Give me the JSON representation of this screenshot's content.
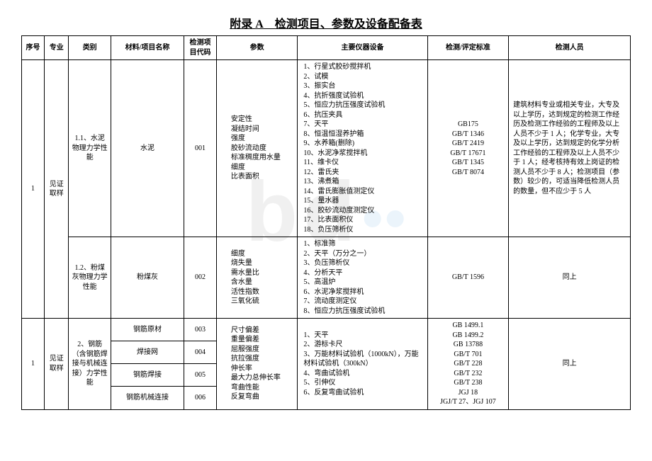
{
  "title": "附录 A 检测项目、参数及设备配备表",
  "watermark": "bd",
  "columns": {
    "seq": "序号",
    "major": "专业",
    "category": "类别",
    "material": "材料/项目名称",
    "code": "检测项目代码",
    "param": "参数",
    "equipment": "主要仪器设备",
    "standard": "检测/评定标准",
    "personnel": "检测人员"
  },
  "colwidths": [
    "28px",
    "30px",
    "52px",
    "90px",
    "40px",
    "100px",
    "160px",
    "100px",
    "150px"
  ],
  "r1": {
    "seq": "1",
    "major": "见证取样",
    "category": "1.1、水泥物理力学性能",
    "material": "水泥",
    "code": "001",
    "param": "安定性\n凝结时间\n强度\n胶砂流动度\n标准稠度用水量\n细度\n比表面积",
    "equipment": "1、行星式胶砂搅拌机\n2、试模\n3、振实台\n4、抗折强度试验机\n5、恒应力抗压强度试验机\n6、抗压夹具\n7、天平\n8、恒温恒湿养护箱\n9、水养箱(删除)\n10、水泥净浆搅拌机\n11、维卡仪\n12、雷氏夹\n13、沸煮箱\n14、雷氏膨胀值测定仪\n15、量水器\n16、胶砂流动度测定仪\n17、比表面积仪\n18、负压筛析仪",
    "standard": "GB175\nGB/T 1346\nGB/T 2419\nGB/T 17671\nGB/T 1345\nGB/T 8074",
    "personnel": "建筑材料专业或相关专业，大专及以上学历，达到规定的检测工作经历及检测工作经验的工程师及以上人员不少于 1 人；化学专业，大专及以上学历，达到规定的化学分析工作经验的工程师及以上人员不少于 1 人；经考核持有效上岗证的检测人员不少于 8 人；检测项目（参数）较少的，可适当降低检测人员的数量，但不应少于 5 人"
  },
  "r2": {
    "category": "1.2、粉煤灰物理力学性能",
    "material": "粉煤灰",
    "code": "002",
    "param": "细度\n烧失量\n需水量比\n含水量\n活性指数\n三氧化硫",
    "equipment": "1、标准筛\n2、天平（万分之一）\n3、负压筛析仪\n4、分析天平\n5、高温炉\n6、水泥净浆搅拌机\n7、流动度测定仪\n8、恒应力抗压强度试验机",
    "standard": "GB/T 1596",
    "personnel": "同上"
  },
  "r3": {
    "seq": "1",
    "major": "见证取样",
    "category": "2、钢筋（含钢筋焊接与机械连接）力学性能",
    "material": "钢筋原材",
    "code": "003",
    "param": "尺寸偏差\n重量偏差\n屈服强度\n抗拉强度\n伸长率\n最大力总伸长率\n弯曲性能\n反复弯曲",
    "equipment": "1、天平\n2、游标卡尺\n3、万能材料试验机（1000kN），万能材料试验机（300kN）\n4、弯曲试验机\n5、引伸仪\n6、反复弯曲试验机",
    "standard": "GB 1499.1\nGB 1499.2\nGB 13788\nGB/T 701\nGB/T 228\nGB/T 232\nGB/T 238\nJGJ 18\nJGJ/T 27、JGJ 107",
    "personnel": "同上"
  },
  "r4": {
    "material": "焊接网",
    "code": "004"
  },
  "r5": {
    "material": "钢筋焊接",
    "code": "005"
  },
  "r6": {
    "material": "钢筋机械连接",
    "code": "006"
  }
}
